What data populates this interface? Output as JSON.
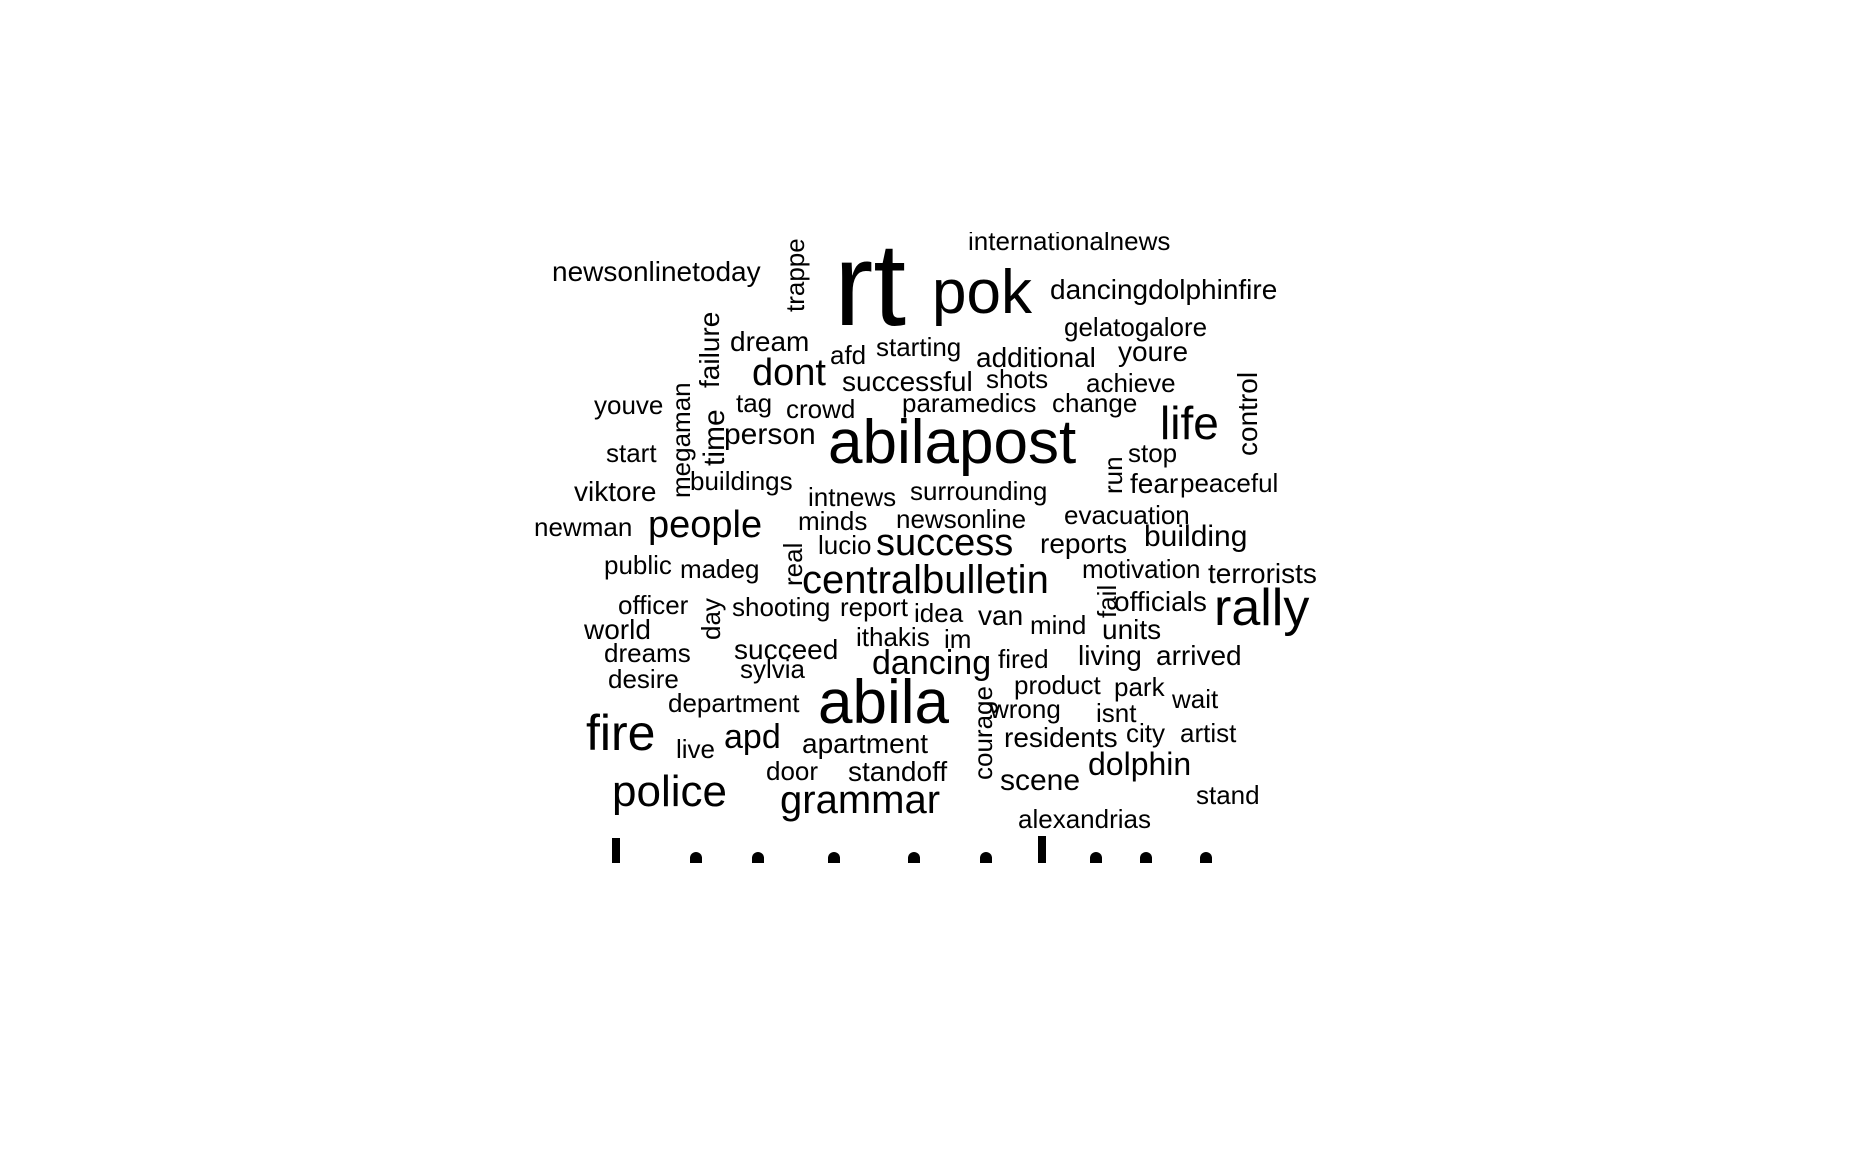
{
  "word_cloud": {
    "text_color": "#000000",
    "background_color": "#ffffff",
    "words": [
      {
        "text": "rt",
        "rotated": false
      },
      {
        "text": "pok",
        "rotated": false
      },
      {
        "text": "internationalnews",
        "rotated": false
      },
      {
        "text": "newsonlinetoday",
        "rotated": false
      },
      {
        "text": "trappe",
        "rotated": true
      },
      {
        "text": "dancingdolphinfire",
        "rotated": false
      },
      {
        "text": "gelatogalore",
        "rotated": false
      },
      {
        "text": "failure",
        "rotated": true
      },
      {
        "text": "dream",
        "rotated": false
      },
      {
        "text": "afd",
        "rotated": false
      },
      {
        "text": "starting",
        "rotated": false
      },
      {
        "text": "additional",
        "rotated": false
      },
      {
        "text": "youre",
        "rotated": false
      },
      {
        "text": "dont",
        "rotated": false
      },
      {
        "text": "successful",
        "rotated": false
      },
      {
        "text": "shots",
        "rotated": false
      },
      {
        "text": "achieve",
        "rotated": false
      },
      {
        "text": "control",
        "rotated": true
      },
      {
        "text": "megaman",
        "rotated": true
      },
      {
        "text": "youve",
        "rotated": false
      },
      {
        "text": "tag",
        "rotated": false
      },
      {
        "text": "crowd",
        "rotated": false
      },
      {
        "text": "paramedics",
        "rotated": false
      },
      {
        "text": "change",
        "rotated": false
      },
      {
        "text": "time",
        "rotated": true
      },
      {
        "text": "person",
        "rotated": false
      },
      {
        "text": "abilapost",
        "rotated": false
      },
      {
        "text": "life",
        "rotated": false
      },
      {
        "text": "start",
        "rotated": false
      },
      {
        "text": "stop",
        "rotated": false
      },
      {
        "text": "run",
        "rotated": true
      },
      {
        "text": "buildings",
        "rotated": false
      },
      {
        "text": "fear",
        "rotated": false
      },
      {
        "text": "peaceful",
        "rotated": false
      },
      {
        "text": "viktore",
        "rotated": false
      },
      {
        "text": "intnews",
        "rotated": false
      },
      {
        "text": "surrounding",
        "rotated": false
      },
      {
        "text": "evacuation",
        "rotated": false
      },
      {
        "text": "newman",
        "rotated": false
      },
      {
        "text": "people",
        "rotated": false
      },
      {
        "text": "minds",
        "rotated": false
      },
      {
        "text": "newsonline",
        "rotated": false
      },
      {
        "text": "building",
        "rotated": false
      },
      {
        "text": "real",
        "rotated": true
      },
      {
        "text": "lucio",
        "rotated": false
      },
      {
        "text": "success",
        "rotated": false
      },
      {
        "text": "reports",
        "rotated": false
      },
      {
        "text": "public",
        "rotated": false
      },
      {
        "text": "madeg",
        "rotated": false
      },
      {
        "text": "motivation",
        "rotated": false
      },
      {
        "text": "terrorists",
        "rotated": false
      },
      {
        "text": "centralbulletin",
        "rotated": false
      },
      {
        "text": "fail",
        "rotated": true
      },
      {
        "text": "officials",
        "rotated": false
      },
      {
        "text": "rally",
        "rotated": false
      },
      {
        "text": "officer",
        "rotated": false
      },
      {
        "text": "day",
        "rotated": true
      },
      {
        "text": "shooting",
        "rotated": false
      },
      {
        "text": "report",
        "rotated": false
      },
      {
        "text": "idea",
        "rotated": false
      },
      {
        "text": "van",
        "rotated": false
      },
      {
        "text": "world",
        "rotated": false
      },
      {
        "text": "mind",
        "rotated": false
      },
      {
        "text": "units",
        "rotated": false
      },
      {
        "text": "ithakis",
        "rotated": false
      },
      {
        "text": "im",
        "rotated": false
      },
      {
        "text": "dreams",
        "rotated": false
      },
      {
        "text": "succeed",
        "rotated": false
      },
      {
        "text": "dancing",
        "rotated": false
      },
      {
        "text": "fired",
        "rotated": false
      },
      {
        "text": "living",
        "rotated": false
      },
      {
        "text": "arrived",
        "rotated": false
      },
      {
        "text": "desire",
        "rotated": false
      },
      {
        "text": "sylvia",
        "rotated": false
      },
      {
        "text": "product",
        "rotated": false
      },
      {
        "text": "park",
        "rotated": false
      },
      {
        "text": "department",
        "rotated": false
      },
      {
        "text": "abila",
        "rotated": false
      },
      {
        "text": "courage",
        "rotated": true
      },
      {
        "text": "wait",
        "rotated": false
      },
      {
        "text": "wrong",
        "rotated": false
      },
      {
        "text": "isnt",
        "rotated": false
      },
      {
        "text": "fire",
        "rotated": false
      },
      {
        "text": "city",
        "rotated": false
      },
      {
        "text": "artist",
        "rotated": false
      },
      {
        "text": "live",
        "rotated": false
      },
      {
        "text": "apd",
        "rotated": false
      },
      {
        "text": "apartment",
        "rotated": false
      },
      {
        "text": "residents",
        "rotated": false
      },
      {
        "text": "door",
        "rotated": false
      },
      {
        "text": "standoff",
        "rotated": false
      },
      {
        "text": "dolphin",
        "rotated": false
      },
      {
        "text": "police",
        "rotated": false
      },
      {
        "text": "grammar",
        "rotated": false
      },
      {
        "text": "scene",
        "rotated": false
      },
      {
        "text": "stand",
        "rotated": false
      },
      {
        "text": "alexandrias",
        "rotated": false
      }
    ]
  }
}
